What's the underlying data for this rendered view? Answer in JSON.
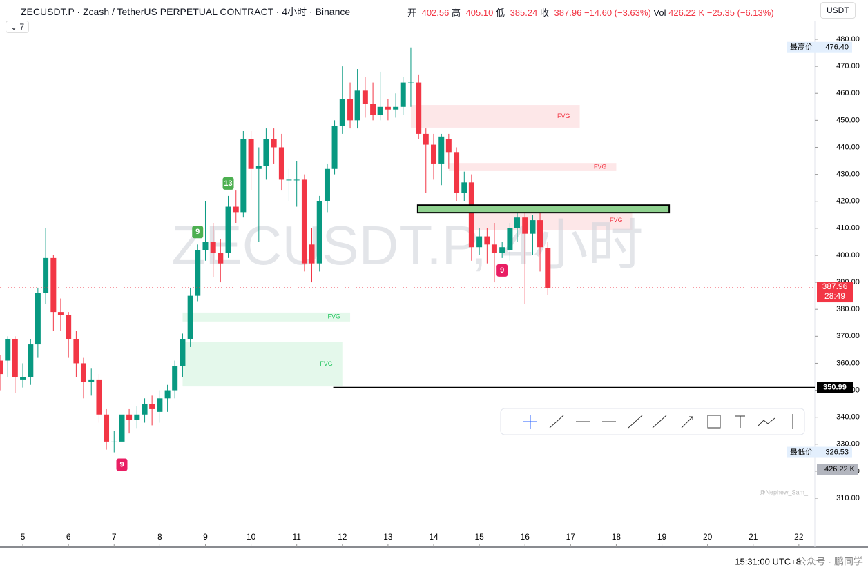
{
  "chart_data": {
    "type": "candlestick",
    "title": "ZECUSDT.P · Zcash / TetherUS PERPETUAL CONTRACT · 4小时 · Binance",
    "x": [
      4.5,
      4.67,
      4.83,
      5,
      5.17,
      5.33,
      5.5,
      5.67,
      5.83,
      6,
      6.17,
      6.33,
      6.5,
      6.67,
      6.83,
      7,
      7.17,
      7.33,
      7.5,
      7.67,
      7.83,
      8,
      8.17,
      8.33,
      8.5,
      8.67,
      8.83,
      9,
      9.17,
      9.33,
      9.5,
      9.67,
      9.83,
      10,
      10.17,
      10.33,
      10.5,
      10.67,
      10.83,
      11,
      11.17,
      11.33,
      11.5,
      11.67,
      11.83,
      12,
      12.17,
      12.33,
      12.5,
      12.67,
      12.83,
      13,
      13.17,
      13.33,
      13.5,
      13.67,
      13.83,
      14,
      14.17,
      14.33,
      14.5,
      14.67,
      14.83,
      15,
      15.17,
      15.33,
      15.5,
      15.67,
      15.83,
      16,
      16.17,
      16.33,
      16.5
    ],
    "open": [
      361,
      361,
      369,
      354,
      355,
      367,
      386,
      399,
      379,
      378,
      369,
      360,
      353,
      354,
      341,
      331,
      331,
      341,
      339,
      341,
      345,
      342,
      347,
      350,
      359,
      369,
      385,
      402,
      405,
      401,
      401,
      418,
      416,
      443,
      432,
      433,
      443,
      440,
      428,
      428,
      428,
      404,
      397,
      420,
      432,
      448,
      458,
      450,
      461,
      456,
      452,
      455,
      454,
      455,
      464,
      464,
      445,
      441,
      434,
      443,
      438,
      423,
      427,
      403,
      407,
      404,
      401,
      402,
      410,
      414,
      408,
      413,
      402.56
    ],
    "high": [
      363,
      370,
      370,
      360,
      369,
      388,
      410,
      400,
      384,
      379,
      372,
      362,
      358,
      356,
      343,
      335,
      343,
      343,
      344,
      347,
      348,
      350,
      352,
      361,
      371,
      388,
      404,
      420,
      412,
      406,
      422,
      424,
      446,
      446,
      440,
      447,
      447,
      445,
      432,
      435,
      430,
      410,
      422,
      434,
      450,
      470,
      464,
      469,
      466,
      464,
      468,
      458,
      460,
      466,
      477,
      467,
      447,
      445,
      445,
      445,
      440,
      431,
      430,
      410,
      410,
      412,
      405,
      412,
      416,
      417,
      415,
      416,
      405.1
    ],
    "low": [
      350,
      355,
      349,
      351,
      352,
      362,
      382,
      372,
      372,
      362,
      355,
      347,
      348,
      338,
      328,
      327,
      327,
      334,
      336,
      338,
      337,
      338,
      342,
      347,
      355,
      366,
      383,
      398,
      392,
      390,
      399,
      412,
      414,
      424,
      405,
      428,
      434,
      424,
      420,
      418,
      394,
      390,
      394,
      416,
      430,
      445,
      447,
      447,
      451,
      450,
      450,
      450,
      451,
      452,
      455,
      443,
      423,
      428,
      426,
      432,
      420,
      420,
      398,
      400,
      397,
      390,
      399,
      398,
      405,
      382,
      400,
      394,
      385.24
    ],
    "close": [
      356,
      369,
      355,
      355,
      367,
      386,
      399,
      379,
      378,
      369,
      360,
      353,
      354,
      341,
      331,
      331,
      341,
      339,
      341,
      345,
      343,
      347,
      350,
      359,
      369,
      385,
      402,
      405,
      401,
      397,
      418,
      416,
      443,
      432,
      433,
      443,
      440,
      428,
      428,
      428,
      397,
      397,
      420,
      432,
      448,
      458,
      450,
      461,
      456,
      452,
      455,
      454,
      455,
      464,
      464,
      445,
      441,
      434,
      444,
      438,
      423,
      427,
      403,
      407,
      404,
      401,
      403,
      410,
      414,
      408,
      413,
      403,
      387.96
    ],
    "up_color": "#089981",
    "down_color": "#f23645",
    "xlim": [
      4.5,
      22.35
    ],
    "xticks": [
      5,
      6,
      7,
      8,
      9,
      10,
      11,
      12,
      13,
      14,
      15,
      16,
      17,
      18,
      19,
      20,
      21,
      22
    ],
    "ylim": [
      307.2,
      486.9
    ],
    "yticks": [
      {
        "value": 310,
        "label": "310.00"
      },
      {
        "value": 320,
        "label": "320.00"
      },
      {
        "value": 330,
        "label": "330.00"
      },
      {
        "value": 340,
        "label": "340.00"
      },
      {
        "value": 350,
        "label": "350.00"
      },
      {
        "value": 360,
        "label": "360.00"
      },
      {
        "value": 370,
        "label": "370.00"
      },
      {
        "value": 380,
        "label": "380.00"
      },
      {
        "value": 390,
        "label": "390.00"
      },
      {
        "value": 400,
        "label": "400.00"
      },
      {
        "value": 410,
        "label": "410.00"
      },
      {
        "value": 420,
        "label": "420.00"
      },
      {
        "value": 430,
        "label": "430.00"
      },
      {
        "value": 440,
        "label": "440.00"
      },
      {
        "value": 450,
        "label": "450.00"
      },
      {
        "value": 460,
        "label": "460.00"
      },
      {
        "value": 470,
        "label": "470.00"
      },
      {
        "value": 480,
        "label": "480.00"
      }
    ],
    "zones": [
      {
        "label": "FVG",
        "x": [
          13.5,
          17.2
        ],
        "y": [
          447.3,
          455.7
        ],
        "color": "#f23645"
      },
      {
        "label": "FVG",
        "x": [
          14.33,
          18
        ],
        "y": [
          431.2,
          434.2
        ],
        "color": "#f23645"
      },
      {
        "label": "FVG",
        "x": [
          14.8,
          18.35
        ],
        "y": [
          409.4,
          416.4
        ],
        "color": "#f23645"
      },
      {
        "label": "FVG",
        "x": [
          8.5,
          12.17
        ],
        "y": [
          375.5,
          378.8
        ],
        "color": "#22c55e"
      },
      {
        "label": "FVG",
        "x": [
          8.5,
          12
        ],
        "y": [
          351.4,
          368
        ],
        "color": "#22c55e"
      }
    ],
    "box": {
      "x": [
        13.65,
        19.16
      ],
      "y": [
        415.8,
        418.6
      ],
      "color": "#8fd18f"
    },
    "hline": {
      "value": 350.99,
      "label": "350.99",
      "x0": 11.8
    },
    "markers": [
      {
        "x": 8.83,
        "label": "9",
        "pos": "above",
        "color": "#4caf50"
      },
      {
        "x": 9.5,
        "label": "13",
        "pos": "above",
        "color": "#4caf50"
      },
      {
        "x": 7.17,
        "label": "9",
        "pos": "below",
        "color": "#e91e63"
      },
      {
        "x": 15.5,
        "label": "9",
        "pos": "below",
        "color": "#e91e63"
      }
    ],
    "high_label": {
      "name": "最高价",
      "value": "476.40"
    },
    "low_label": {
      "name": "最低价",
      "value": "326.53"
    },
    "last": {
      "value": "387.96",
      "timer": "28:49"
    },
    "volume_label": "426.22 K"
  },
  "ui": {
    "ohlc": [
      {
        "label": "开=",
        "value": "402.56"
      },
      {
        "label": "高=",
        "value": "405.10"
      },
      {
        "label": "低=",
        "value": "385.24"
      },
      {
        "label": "收=",
        "value": "387.96"
      }
    ],
    "change": "−14.60 (−3.63%)",
    "vol_label": "Vol",
    "vol": "426.22 K",
    "vol_change": "−25.35 (−6.13%)",
    "currency": "USDT",
    "indicators": "7",
    "watermark": "ZECUSDT.P, 4小时",
    "author": "@Nephew_Sam_",
    "time": "15:31:00 UTC+8",
    "credit": "公众号 · 鹏同学"
  }
}
